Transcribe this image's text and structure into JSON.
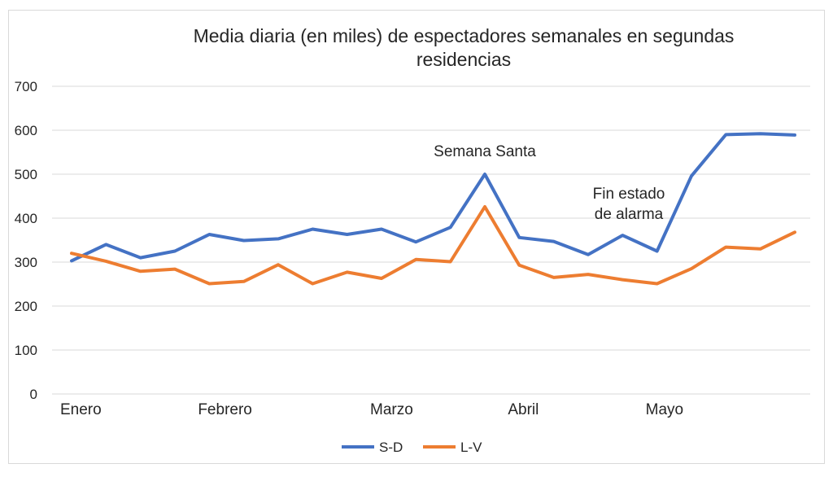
{
  "chart_data": {
    "type": "line",
    "title": "Media diaria (en miles) de espectadores semanales en segundas residencias",
    "ylim": [
      0,
      700
    ],
    "yticks": [
      0,
      100,
      200,
      300,
      400,
      500,
      600,
      700
    ],
    "grid": true,
    "legend_position": "bottom",
    "month_labels": [
      {
        "label": "Enero",
        "week": 0
      },
      {
        "label": "Febrero",
        "week": 4
      },
      {
        "label": "Marzo",
        "week": 9
      },
      {
        "label": "Abril",
        "week": 13
      },
      {
        "label": "Mayo",
        "week": 17
      }
    ],
    "series": [
      {
        "name": "S-D",
        "color": "#4472C4",
        "values": [
          303,
          340,
          310,
          325,
          363,
          349,
          353,
          375,
          363,
          375,
          346,
          379,
          500,
          356,
          347,
          317,
          361,
          325,
          496,
          590,
          592,
          589
        ]
      },
      {
        "name": "L-V",
        "color": "#ED7D31",
        "values": [
          320,
          302,
          279,
          284,
          251,
          256,
          294,
          251,
          277,
          263,
          306,
          301,
          426,
          293,
          265,
          272,
          260,
          251,
          285,
          334,
          330,
          368
        ]
      }
    ],
    "annotations": [
      {
        "text": "Semana Santa",
        "week": 12
      },
      {
        "lines": [
          "Fin estado",
          "de alarma"
        ],
        "week": 17
      }
    ]
  }
}
